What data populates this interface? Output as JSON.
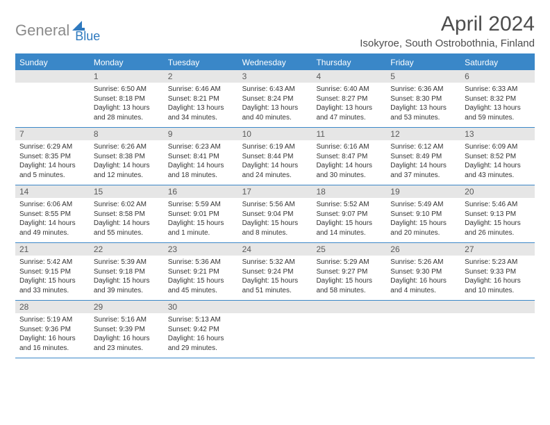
{
  "logo": {
    "part1": "General",
    "part2": "Blue"
  },
  "title": "April 2024",
  "location": "Isokyroe, South Ostrobothnia, Finland",
  "weekdays": [
    "Sunday",
    "Monday",
    "Tuesday",
    "Wednesday",
    "Thursday",
    "Friday",
    "Saturday"
  ],
  "colors": {
    "header_bg": "#3a87c8",
    "header_text": "#ffffff",
    "daynum_bg": "#e6e6e6",
    "daynum_text": "#5a5a5a",
    "border": "#3a87c8",
    "logo_gray": "#8b8b8b",
    "logo_blue": "#2f7abf",
    "title_color": "#4d4d4d"
  },
  "weeks": [
    [
      null,
      {
        "d": "1",
        "sr": "Sunrise: 6:50 AM",
        "ss": "Sunset: 8:18 PM",
        "dl1": "Daylight: 13 hours",
        "dl2": "and 28 minutes."
      },
      {
        "d": "2",
        "sr": "Sunrise: 6:46 AM",
        "ss": "Sunset: 8:21 PM",
        "dl1": "Daylight: 13 hours",
        "dl2": "and 34 minutes."
      },
      {
        "d": "3",
        "sr": "Sunrise: 6:43 AM",
        "ss": "Sunset: 8:24 PM",
        "dl1": "Daylight: 13 hours",
        "dl2": "and 40 minutes."
      },
      {
        "d": "4",
        "sr": "Sunrise: 6:40 AM",
        "ss": "Sunset: 8:27 PM",
        "dl1": "Daylight: 13 hours",
        "dl2": "and 47 minutes."
      },
      {
        "d": "5",
        "sr": "Sunrise: 6:36 AM",
        "ss": "Sunset: 8:30 PM",
        "dl1": "Daylight: 13 hours",
        "dl2": "and 53 minutes."
      },
      {
        "d": "6",
        "sr": "Sunrise: 6:33 AM",
        "ss": "Sunset: 8:32 PM",
        "dl1": "Daylight: 13 hours",
        "dl2": "and 59 minutes."
      }
    ],
    [
      {
        "d": "7",
        "sr": "Sunrise: 6:29 AM",
        "ss": "Sunset: 8:35 PM",
        "dl1": "Daylight: 14 hours",
        "dl2": "and 5 minutes."
      },
      {
        "d": "8",
        "sr": "Sunrise: 6:26 AM",
        "ss": "Sunset: 8:38 PM",
        "dl1": "Daylight: 14 hours",
        "dl2": "and 12 minutes."
      },
      {
        "d": "9",
        "sr": "Sunrise: 6:23 AM",
        "ss": "Sunset: 8:41 PM",
        "dl1": "Daylight: 14 hours",
        "dl2": "and 18 minutes."
      },
      {
        "d": "10",
        "sr": "Sunrise: 6:19 AM",
        "ss": "Sunset: 8:44 PM",
        "dl1": "Daylight: 14 hours",
        "dl2": "and 24 minutes."
      },
      {
        "d": "11",
        "sr": "Sunrise: 6:16 AM",
        "ss": "Sunset: 8:47 PM",
        "dl1": "Daylight: 14 hours",
        "dl2": "and 30 minutes."
      },
      {
        "d": "12",
        "sr": "Sunrise: 6:12 AM",
        "ss": "Sunset: 8:49 PM",
        "dl1": "Daylight: 14 hours",
        "dl2": "and 37 minutes."
      },
      {
        "d": "13",
        "sr": "Sunrise: 6:09 AM",
        "ss": "Sunset: 8:52 PM",
        "dl1": "Daylight: 14 hours",
        "dl2": "and 43 minutes."
      }
    ],
    [
      {
        "d": "14",
        "sr": "Sunrise: 6:06 AM",
        "ss": "Sunset: 8:55 PM",
        "dl1": "Daylight: 14 hours",
        "dl2": "and 49 minutes."
      },
      {
        "d": "15",
        "sr": "Sunrise: 6:02 AM",
        "ss": "Sunset: 8:58 PM",
        "dl1": "Daylight: 14 hours",
        "dl2": "and 55 minutes."
      },
      {
        "d": "16",
        "sr": "Sunrise: 5:59 AM",
        "ss": "Sunset: 9:01 PM",
        "dl1": "Daylight: 15 hours",
        "dl2": "and 1 minute."
      },
      {
        "d": "17",
        "sr": "Sunrise: 5:56 AM",
        "ss": "Sunset: 9:04 PM",
        "dl1": "Daylight: 15 hours",
        "dl2": "and 8 minutes."
      },
      {
        "d": "18",
        "sr": "Sunrise: 5:52 AM",
        "ss": "Sunset: 9:07 PM",
        "dl1": "Daylight: 15 hours",
        "dl2": "and 14 minutes."
      },
      {
        "d": "19",
        "sr": "Sunrise: 5:49 AM",
        "ss": "Sunset: 9:10 PM",
        "dl1": "Daylight: 15 hours",
        "dl2": "and 20 minutes."
      },
      {
        "d": "20",
        "sr": "Sunrise: 5:46 AM",
        "ss": "Sunset: 9:13 PM",
        "dl1": "Daylight: 15 hours",
        "dl2": "and 26 minutes."
      }
    ],
    [
      {
        "d": "21",
        "sr": "Sunrise: 5:42 AM",
        "ss": "Sunset: 9:15 PM",
        "dl1": "Daylight: 15 hours",
        "dl2": "and 33 minutes."
      },
      {
        "d": "22",
        "sr": "Sunrise: 5:39 AM",
        "ss": "Sunset: 9:18 PM",
        "dl1": "Daylight: 15 hours",
        "dl2": "and 39 minutes."
      },
      {
        "d": "23",
        "sr": "Sunrise: 5:36 AM",
        "ss": "Sunset: 9:21 PM",
        "dl1": "Daylight: 15 hours",
        "dl2": "and 45 minutes."
      },
      {
        "d": "24",
        "sr": "Sunrise: 5:32 AM",
        "ss": "Sunset: 9:24 PM",
        "dl1": "Daylight: 15 hours",
        "dl2": "and 51 minutes."
      },
      {
        "d": "25",
        "sr": "Sunrise: 5:29 AM",
        "ss": "Sunset: 9:27 PM",
        "dl1": "Daylight: 15 hours",
        "dl2": "and 58 minutes."
      },
      {
        "d": "26",
        "sr": "Sunrise: 5:26 AM",
        "ss": "Sunset: 9:30 PM",
        "dl1": "Daylight: 16 hours",
        "dl2": "and 4 minutes."
      },
      {
        "d": "27",
        "sr": "Sunrise: 5:23 AM",
        "ss": "Sunset: 9:33 PM",
        "dl1": "Daylight: 16 hours",
        "dl2": "and 10 minutes."
      }
    ],
    [
      {
        "d": "28",
        "sr": "Sunrise: 5:19 AM",
        "ss": "Sunset: 9:36 PM",
        "dl1": "Daylight: 16 hours",
        "dl2": "and 16 minutes."
      },
      {
        "d": "29",
        "sr": "Sunrise: 5:16 AM",
        "ss": "Sunset: 9:39 PM",
        "dl1": "Daylight: 16 hours",
        "dl2": "and 23 minutes."
      },
      {
        "d": "30",
        "sr": "Sunrise: 5:13 AM",
        "ss": "Sunset: 9:42 PM",
        "dl1": "Daylight: 16 hours",
        "dl2": "and 29 minutes."
      },
      null,
      null,
      null,
      null
    ]
  ]
}
